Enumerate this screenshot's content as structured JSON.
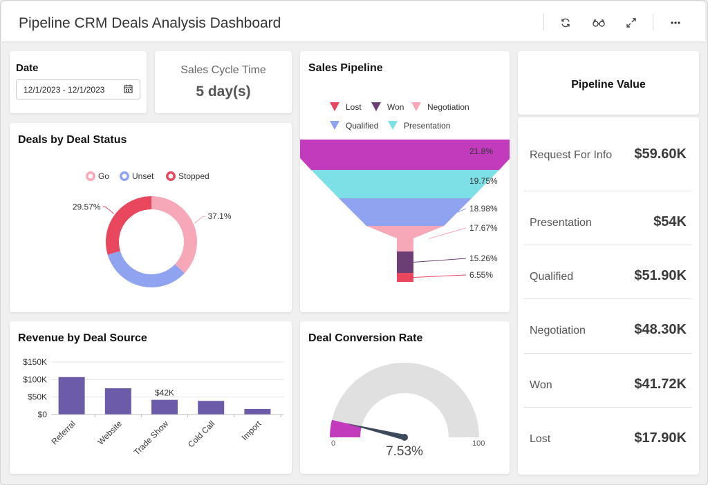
{
  "header": {
    "title": "Pipeline CRM Deals Analysis Dashboard",
    "tools": [
      {
        "name": "refresh-icon"
      },
      {
        "name": "glasses-icon"
      },
      {
        "name": "expand-icon"
      },
      {
        "name": "more-icon"
      }
    ]
  },
  "date_card": {
    "label": "Date",
    "value": "12/1/2023 - 12/1/2023",
    "icon": "calendar-icon"
  },
  "sales_cycle": {
    "label": "Sales Cycle Time",
    "value": "5 day(s)"
  },
  "deals_by_status": {
    "title": "Deals by Deal Status",
    "chart_data": {
      "type": "pie",
      "donut": true,
      "legend_position": "top",
      "categories": [
        "Go",
        "Unset",
        "Stopped"
      ],
      "values": [
        37.1,
        33.33,
        29.57
      ],
      "data_labels": [
        "37.1%",
        "",
        "29.57%"
      ],
      "colors": [
        "#f7a8b8",
        "#8fa3f0",
        "#e8475e"
      ]
    }
  },
  "sales_pipeline": {
    "title": "Sales Pipeline",
    "chart_data": {
      "type": "funnel",
      "legend_position": "top",
      "legend": [
        {
          "name": "Lost",
          "color": "#e8475e"
        },
        {
          "name": "Won",
          "color": "#6b3f73"
        },
        {
          "name": "Negotiation",
          "color": "#f7a8b8"
        },
        {
          "name": "Qualified",
          "color": "#8fa3f0"
        },
        {
          "name": "Presentation",
          "color": "#7de0e6"
        }
      ],
      "stages": [
        {
          "value": 21.8,
          "label": "21.8%",
          "color": "#c23bbd"
        },
        {
          "value": 19.75,
          "label": "19.75%",
          "color": "#7de0e6"
        },
        {
          "value": 18.98,
          "label": "18.98%",
          "color": "#8fa3f0"
        },
        {
          "value": 17.67,
          "label": "17.67%",
          "color": "#f7a8b8"
        },
        {
          "value": 15.26,
          "label": "15.26%",
          "color": "#6b3f73"
        },
        {
          "value": 6.55,
          "label": "6.55%",
          "color": "#e8475e"
        }
      ]
    }
  },
  "pipeline_value": {
    "title": "Pipeline Value",
    "rows": [
      {
        "label": "Request For Info",
        "value": "$59.60K"
      },
      {
        "label": "Presentation",
        "value": "$54K"
      },
      {
        "label": "Qualified",
        "value": "$51.90K"
      },
      {
        "label": "Negotiation",
        "value": "$48.30K"
      },
      {
        "label": "Won",
        "value": "$41.72K"
      },
      {
        "label": "Lost",
        "value": "$17.90K"
      }
    ]
  },
  "revenue_by_source": {
    "title": "Revenue by Deal Source",
    "chart_data": {
      "type": "bar",
      "categories": [
        "Referral",
        "Website",
        "Trade Show",
        "Cold Call",
        "Import"
      ],
      "values": [
        107000,
        75000,
        42000,
        39000,
        16000
      ],
      "data_labels": [
        "",
        "",
        "$42K",
        "",
        ""
      ],
      "yticks": [
        0,
        50000,
        100000,
        150000
      ],
      "ytick_labels": [
        "$0",
        "$50K",
        "$100K",
        "$150K"
      ],
      "ylim": [
        0,
        150000
      ],
      "grid": true,
      "color": "#6c5ba9"
    }
  },
  "conversion_rate": {
    "title": "Deal Conversion Rate",
    "chart_data": {
      "type": "gauge",
      "value": 7.53,
      "value_label": "7.53%",
      "min": 0,
      "max": 100,
      "min_label": "0",
      "max_label": "100",
      "fill_color": "#c23bbd",
      "track_color": "#e0e0e0",
      "needle_color": "#3d4a5c"
    }
  }
}
